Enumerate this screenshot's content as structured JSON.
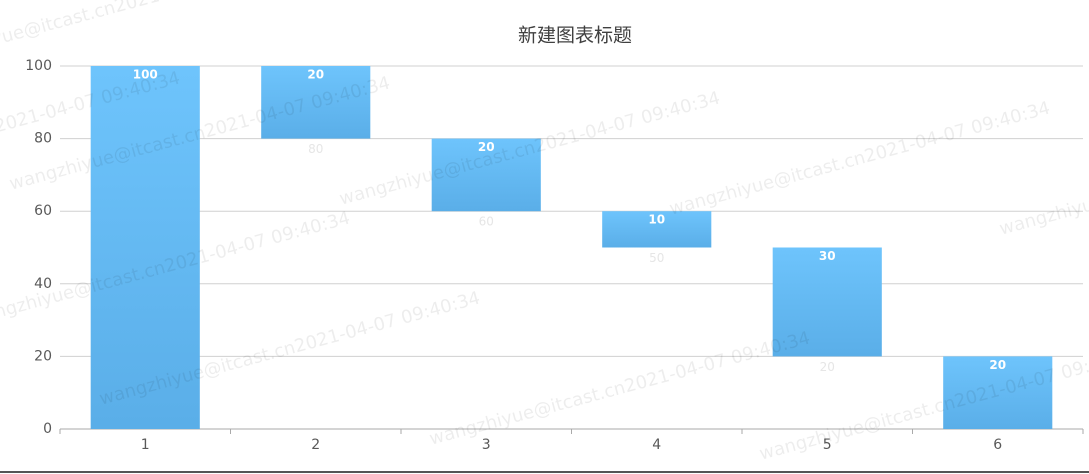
{
  "chart_data": {
    "type": "waterfall",
    "title": "新建图表标题",
    "categories": [
      "1",
      "2",
      "3",
      "4",
      "5",
      "6"
    ],
    "series": [
      {
        "color": "transparent",
        "values": [
          0,
          80,
          60,
          50,
          20,
          0
        ],
        "value_labels": [
          null,
          "80",
          "60",
          "50",
          "20",
          null
        ]
      },
      {
        "color": "#64b9f4",
        "values": [
          100,
          20,
          20,
          10,
          30,
          20
        ]
      }
    ],
    "stacked": true,
    "ylim": [
      0,
      100
    ],
    "yticks": [
      0,
      20,
      40,
      60,
      80,
      100
    ],
    "grid": true
  },
  "watermark": "wangzhiyue@itcast.cn2021-04-07 09:40:34"
}
